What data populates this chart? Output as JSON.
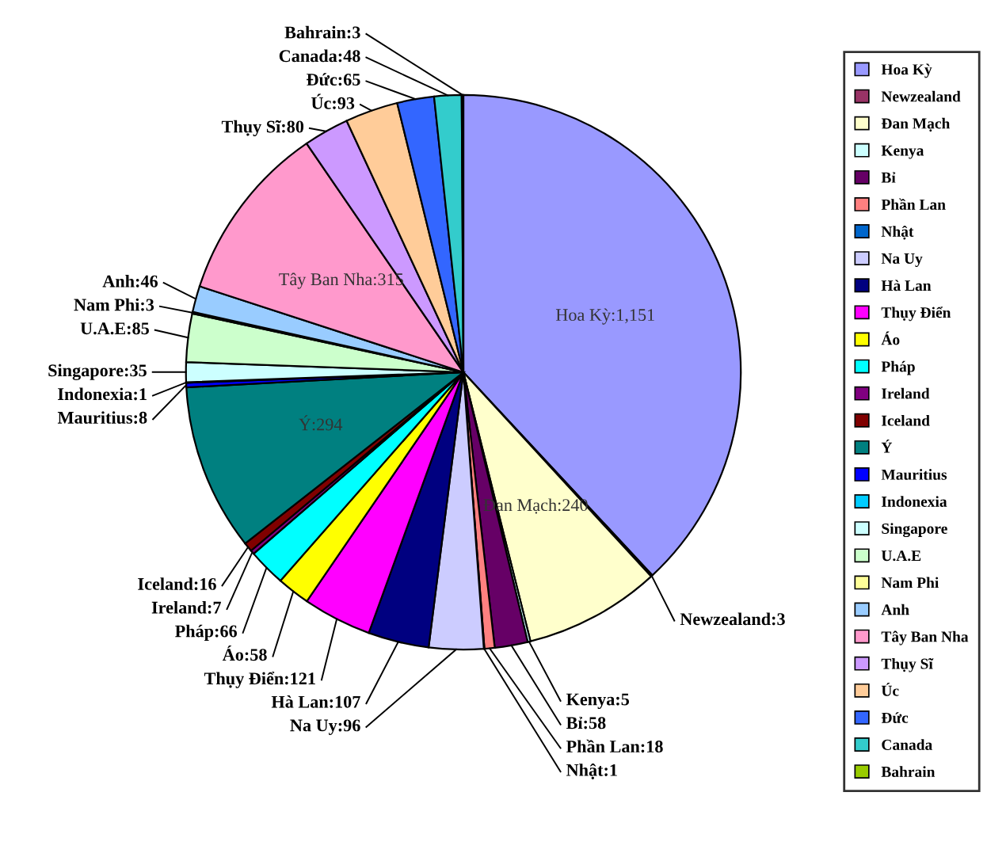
{
  "chart_data": {
    "type": "pie",
    "categories": [
      "Hoa Kỳ",
      "Newzealand",
      "Đan Mạch",
      "Kenya",
      "Bỉ",
      "Phần Lan",
      "Nhật",
      "Na Uy",
      "Hà Lan",
      "Thụy Điển",
      "Áo",
      "Pháp",
      "Ireland",
      "Iceland",
      "Ý",
      "Mauritius",
      "Indonexia",
      "Singapore",
      "U.A.E",
      "Nam Phi",
      "Anh",
      "Tây Ban Nha",
      "Thụy Sĩ",
      "Úc",
      "Đức",
      "Canada",
      "Bahrain"
    ],
    "values": [
      1151,
      3,
      240,
      5,
      58,
      18,
      1,
      96,
      107,
      121,
      58,
      66,
      7,
      16,
      294,
      8,
      1,
      35,
      85,
      3,
      46,
      315,
      80,
      93,
      65,
      48,
      3
    ],
    "value_labels": [
      "Hoa Kỳ:1,151",
      "Newzealand:3",
      "Đan Mạch:240",
      "Kenya:5",
      "Bỉ:58",
      "Phần Lan:18",
      "Nhật:1",
      "Na Uy:96",
      "Hà Lan:107",
      "Thụy Điển:121",
      "Áo:58",
      "Pháp:66",
      "Ireland:7",
      "Iceland:16",
      "Ý:294",
      "Mauritius:8",
      "Indonexia:1",
      "Singapore:35",
      "U.A.E:85",
      "Nam Phi:3",
      "Anh:46",
      "Tây Ban Nha:315",
      "Thụy Sĩ:80",
      "Úc:93",
      "Đức:65",
      "Canada:48",
      "Bahrain:3"
    ],
    "colors": [
      "#9999ff",
      "#993366",
      "#ffffcc",
      "#ccffff",
      "#660066",
      "#ff8080",
      "#0066cc",
      "#ccccff",
      "#000080",
      "#ff00ff",
      "#ffff00",
      "#00ffff",
      "#800080",
      "#800000",
      "#008080",
      "#0000ff",
      "#00ccff",
      "#ccffff",
      "#ccffcc",
      "#ffff99",
      "#99ccff",
      "#ff99cc",
      "#cc99ff",
      "#ffcc99",
      "#3366ff",
      "#33cccc",
      "#99cc00"
    ],
    "legend": "right"
  }
}
